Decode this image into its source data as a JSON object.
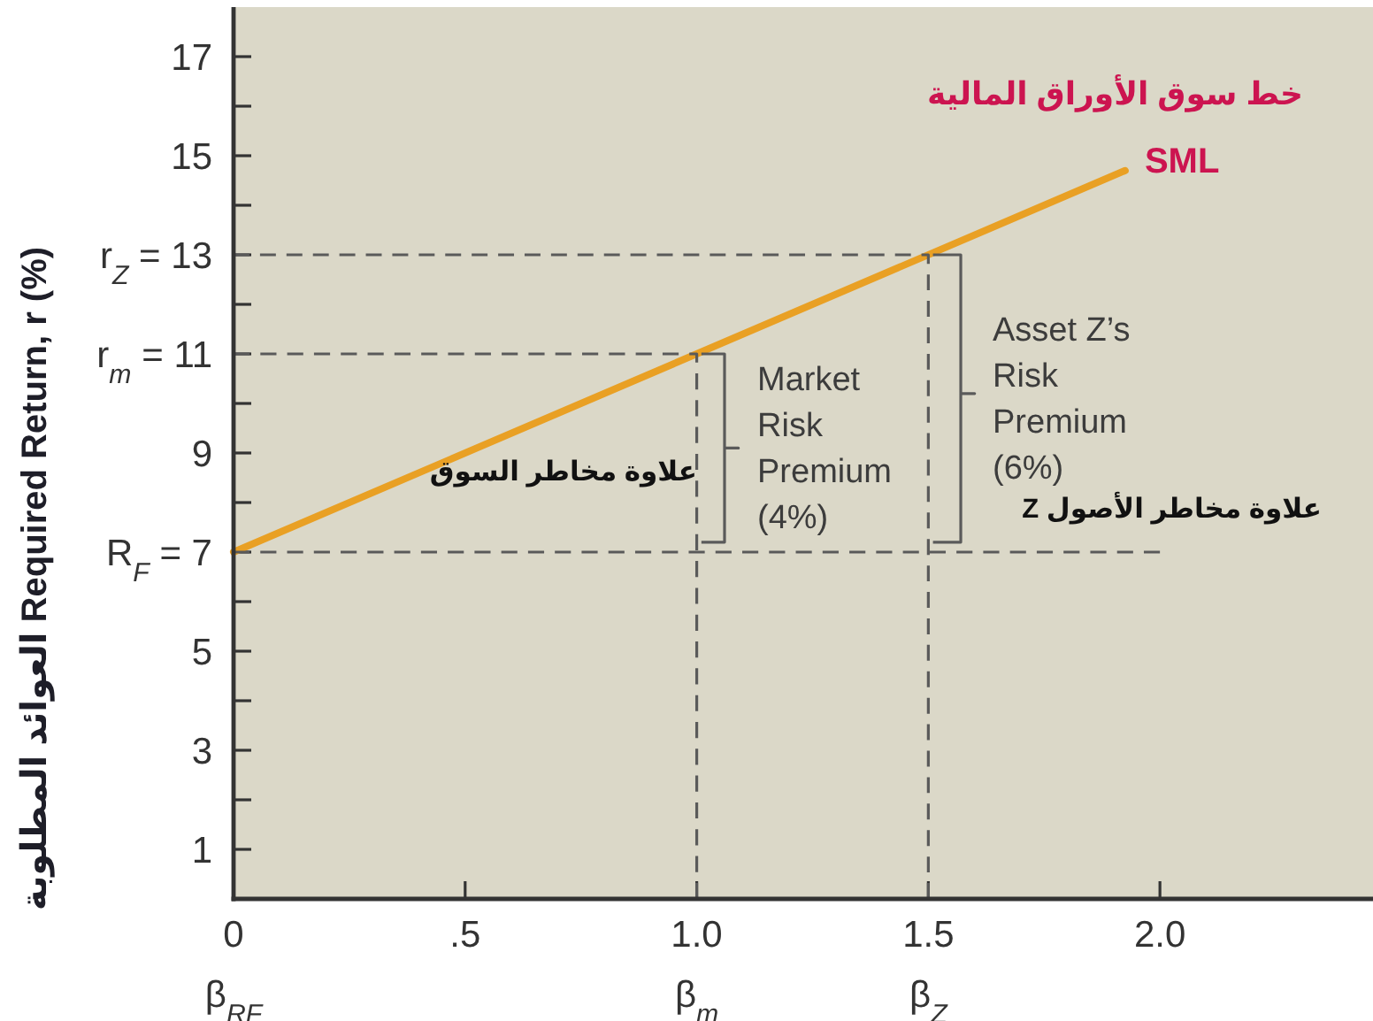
{
  "chart_data": {
    "type": "line",
    "xlim": [
      0,
      2.46
    ],
    "ylim": [
      0,
      18
    ],
    "xticks": [
      {
        "value": 0,
        "label": "0\nβ$_{RF}$"
      },
      {
        "value": 0.5,
        "label": ".5"
      },
      {
        "value": 1,
        "label": "1.0\nβ$_{m}$"
      },
      {
        "value": 1.5,
        "label": "1.5\nβ$_{Z}$"
      },
      {
        "value": 2,
        "label": "2.0"
      }
    ],
    "yticks": [
      1,
      {
        "value": 2,
        "label": null
      },
      3,
      {
        "value": 4,
        "label": null
      },
      5,
      {
        "value": 6,
        "label": null
      },
      {
        "value": 7,
        "label": "R$_{F}$ = 7"
      },
      {
        "value": 8,
        "label": null
      },
      9,
      {
        "value": 10,
        "label": null
      },
      {
        "value": 11,
        "label": "r$_{m}$ = 11"
      },
      {
        "value": 12,
        "label": null
      },
      {
        "value": 13,
        "label": "r$_{Z}$ = 13"
      },
      {
        "value": 14,
        "label": null
      },
      15,
      {
        "value": 16,
        "label": null
      },
      17
    ],
    "ylabel": "العوائد المطلوبة Required Return, r (%)",
    "series": [
      {
        "name": "SML",
        "color": "#e9a024",
        "x": [
          0,
          1.925
        ],
        "values": [
          7,
          14.7
        ]
      },
      {
        "color": "#5a5a5a",
        "line_style": "dashed",
        "x": [
          0,
          1,
          1
        ],
        "values": [
          11,
          11,
          0
        ]
      },
      {
        "color": "#5a5a5a",
        "line_style": "dashed",
        "x": [
          0,
          1.5,
          1.5
        ],
        "values": [
          13,
          13,
          0
        ]
      },
      {
        "color": "#5a5a5a",
        "line_style": "dashed",
        "x": [
          0,
          2
        ],
        "values": [
          7,
          7
        ]
      },
      {
        "color": "#5a5a5a",
        "x": [
          1.01,
          1.06,
          1.06,
          1.09,
          1.06,
          1.06,
          1.01
        ],
        "values": [
          11,
          11,
          9.1,
          9.1,
          9.1,
          7.2,
          7.2
        ]
      },
      {
        "color": "#5a5a5a",
        "x": [
          1.51,
          1.57,
          1.57,
          1.6,
          1.57,
          1.57,
          1.51
        ],
        "values": [
          13,
          13,
          10.2,
          10.2,
          10.2,
          7.2,
          7.2
        ]
      }
    ],
    "annotations": [
      "خط سوق الأوراق المالية",
      "Market\nRisk\nPremium\n(4%)",
      "علاوة مخاطر السوق",
      "Asset Z’s\nRisk\nPremium\n(6%)",
      "علاوة مخاطر الأصول Z"
    ]
  }
}
